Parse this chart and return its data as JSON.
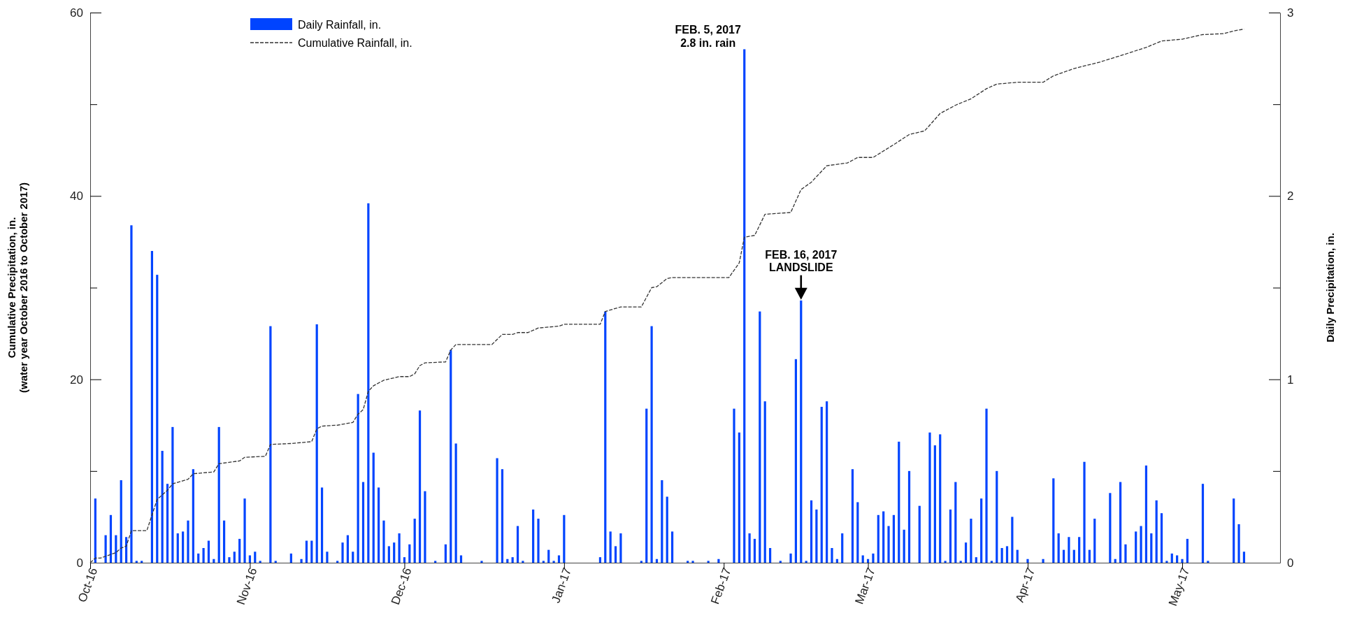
{
  "chart_data": {
    "type": "bar",
    "ylabel": "Cumulative Precipitation, in.\n(water year October 2016 to October 2017)",
    "y2label": "Daily Precipitation, in.",
    "legend": "top left",
    "line_style": "dashed",
    "xlim": [
      "2016-10-01",
      "2017-05-20"
    ],
    "xticks": [
      {
        "value": "2016-10-01",
        "label": "Oct-16"
      },
      {
        "value": "2016-11-01",
        "label": "Nov-16"
      },
      {
        "value": "2016-12-01",
        "label": "Dec-16"
      },
      {
        "value": "2017-01-01",
        "label": "Jan-17"
      },
      {
        "value": "2017-02-01",
        "label": "Feb-17"
      },
      {
        "value": "2017-03-01",
        "label": "Mar-17"
      },
      {
        "value": "2017-04-01",
        "label": "Apr-17"
      },
      {
        "value": "2017-05-01",
        "label": "May-17"
      }
    ],
    "ylim": [
      0,
      60
    ],
    "yticks": [
      0,
      {
        "value": 10,
        "label": null
      },
      20,
      {
        "value": 30,
        "label": null
      },
      40,
      {
        "value": 50,
        "label": null
      },
      60
    ],
    "y2lim": [
      0,
      3
    ],
    "y2ticks": [
      0,
      {
        "value": 0.5,
        "label": null
      },
      1,
      {
        "value": 1.5,
        "label": null
      },
      2,
      {
        "value": 2.5,
        "label": null
      },
      3
    ],
    "annotations": [
      {
        "text": "FEB. 5, 2017\n2.8 in. rain",
        "x": "2017-02-05",
        "y": 56
      },
      {
        "text": "FEB. 16, 2017\nLANDSLIDE",
        "x": "2017-02-16",
        "y": 28.6
      }
    ],
    "series": [
      {
        "name": "Daily Rainfall, in.",
        "axis": "y2",
        "color": "#0044ff",
        "x": [
          "2016-10-02",
          "2016-10-04",
          "2016-10-05",
          "2016-10-06",
          "2016-10-07",
          "2016-10-08",
          "2016-10-09",
          "2016-10-10",
          "2016-10-11",
          "2016-10-13",
          "2016-10-14",
          "2016-10-15",
          "2016-10-16",
          "2016-10-17",
          "2016-10-18",
          "2016-10-19",
          "2016-10-20",
          "2016-10-21",
          "2016-10-22",
          "2016-10-23",
          "2016-10-24",
          "2016-10-25",
          "2016-10-26",
          "2016-10-27",
          "2016-10-28",
          "2016-10-29",
          "2016-10-30",
          "2016-10-31",
          "2016-11-01",
          "2016-11-02",
          "2016-11-03",
          "2016-11-05",
          "2016-11-06",
          "2016-11-09",
          "2016-11-11",
          "2016-11-12",
          "2016-11-13",
          "2016-11-14",
          "2016-11-15",
          "2016-11-16",
          "2016-11-18",
          "2016-11-19",
          "2016-11-20",
          "2016-11-21",
          "2016-11-22",
          "2016-11-23",
          "2016-11-24",
          "2016-11-25",
          "2016-11-26",
          "2016-11-27",
          "2016-11-28",
          "2016-11-29",
          "2016-11-30",
          "2016-12-01",
          "2016-12-02",
          "2016-12-03",
          "2016-12-04",
          "2016-12-05",
          "2016-12-07",
          "2016-12-09",
          "2016-12-10",
          "2016-12-11",
          "2016-12-12",
          "2016-12-16",
          "2016-12-19",
          "2016-12-20",
          "2016-12-21",
          "2016-12-22",
          "2016-12-23",
          "2016-12-24",
          "2016-12-26",
          "2016-12-27",
          "2016-12-28",
          "2016-12-29",
          "2016-12-30",
          "2016-12-31",
          "2017-01-01",
          "2017-01-08",
          "2017-01-09",
          "2017-01-10",
          "2017-01-11",
          "2017-01-12",
          "2017-01-16",
          "2017-01-17",
          "2017-01-18",
          "2017-01-19",
          "2017-01-20",
          "2017-01-21",
          "2017-01-22",
          "2017-01-25",
          "2017-01-26",
          "2017-01-29",
          "2017-01-31",
          "2017-02-03",
          "2017-02-04",
          "2017-02-05",
          "2017-02-06",
          "2017-02-07",
          "2017-02-08",
          "2017-02-09",
          "2017-02-10",
          "2017-02-12",
          "2017-02-14",
          "2017-02-15",
          "2017-02-16",
          "2017-02-17",
          "2017-02-18",
          "2017-02-19",
          "2017-02-20",
          "2017-02-21",
          "2017-02-22",
          "2017-02-23",
          "2017-02-24",
          "2017-02-26",
          "2017-02-27",
          "2017-02-28",
          "2017-03-01",
          "2017-03-02",
          "2017-03-03",
          "2017-03-04",
          "2017-03-05",
          "2017-03-06",
          "2017-03-07",
          "2017-03-08",
          "2017-03-09",
          "2017-03-11",
          "2017-03-13",
          "2017-03-14",
          "2017-03-15",
          "2017-03-16",
          "2017-03-17",
          "2017-03-18",
          "2017-03-19",
          "2017-03-20",
          "2017-03-21",
          "2017-03-22",
          "2017-03-23",
          "2017-03-24",
          "2017-03-25",
          "2017-03-26",
          "2017-03-27",
          "2017-03-28",
          "2017-03-29",
          "2017-03-30",
          "2017-04-01",
          "2017-04-04",
          "2017-04-06",
          "2017-04-07",
          "2017-04-08",
          "2017-04-09",
          "2017-04-10",
          "2017-04-11",
          "2017-04-12",
          "2017-04-13",
          "2017-04-14",
          "2017-04-17",
          "2017-04-18",
          "2017-04-19",
          "2017-04-20",
          "2017-04-22",
          "2017-04-23",
          "2017-04-24",
          "2017-04-25",
          "2017-04-26",
          "2017-04-27",
          "2017-04-28",
          "2017-04-29",
          "2017-04-30",
          "2017-05-01",
          "2017-05-02",
          "2017-05-05",
          "2017-05-06",
          "2017-05-11",
          "2017-05-12",
          "2017-05-13"
        ],
        "values": [
          0.35,
          0.15,
          0.26,
          0.15,
          0.45,
          0.14,
          1.84,
          0.01,
          0.01,
          1.7,
          1.57,
          0.61,
          0.43,
          0.74,
          0.16,
          0.17,
          0.23,
          0.51,
          0.05,
          0.08,
          0.12,
          0.02,
          0.74,
          0.23,
          0.03,
          0.06,
          0.13,
          0.35,
          0.04,
          0.06,
          0.01,
          1.29,
          0.01,
          0.05,
          0.02,
          0.12,
          0.12,
          1.3,
          0.41,
          0.06,
          0.01,
          0.11,
          0.15,
          0.06,
          0.92,
          0.44,
          1.96,
          0.6,
          0.41,
          0.23,
          0.09,
          0.11,
          0.16,
          0.03,
          0.1,
          0.24,
          0.83,
          0.39,
          0.01,
          0.1,
          1.16,
          0.65,
          0.04,
          0.01,
          0.57,
          0.51,
          0.02,
          0.03,
          0.2,
          0.01,
          0.29,
          0.24,
          0.01,
          0.07,
          0.01,
          0.04,
          0.26,
          0.03,
          1.37,
          0.17,
          0.09,
          0.16,
          0.01,
          0.84,
          1.29,
          0.02,
          0.45,
          0.36,
          0.17,
          0.01,
          0.01,
          0.01,
          0.02,
          0.84,
          0.71,
          2.8,
          0.16,
          0.13,
          1.37,
          0.88,
          0.08,
          0.01,
          0.05,
          1.11,
          1.43,
          0.01,
          0.34,
          0.29,
          0.85,
          0.88,
          0.08,
          0.02,
          0.16,
          0.51,
          0.33,
          0.04,
          0.02,
          0.05,
          0.26,
          0.28,
          0.2,
          0.26,
          0.66,
          0.18,
          0.5,
          0.31,
          0.71,
          0.64,
          0.7,
          0.01,
          0.29,
          0.44,
          0.01,
          0.11,
          0.24,
          0.03,
          0.35,
          0.84,
          0.01,
          0.5,
          0.08,
          0.09,
          0.25,
          0.07,
          0.02,
          0.02,
          0.46,
          0.16,
          0.07,
          0.14,
          0.07,
          0.14,
          0.55,
          0.07,
          0.24,
          0.38,
          0.02,
          0.44,
          0.1,
          0.17,
          0.2,
          0.53,
          0.16,
          0.34,
          0.27,
          0.01,
          0.05,
          0.04,
          0.02,
          0.13,
          0.43,
          0.01,
          0.35,
          0.21,
          0.06
        ]
      },
      {
        "name": "Cumulative Rainfall, in.",
        "type": "line",
        "axis": "y",
        "color": "#333333",
        "x": [
          "2016-10-01",
          "2016-10-02",
          "2016-10-03",
          "2016-10-06",
          "2016-10-07",
          "2016-10-08",
          "2016-10-09",
          "2016-10-12",
          "2016-10-14",
          "2016-10-16",
          "2016-10-17",
          "2016-10-20",
          "2016-10-21",
          "2016-10-25",
          "2016-10-26",
          "2016-10-30",
          "2016-10-31",
          "2016-11-04",
          "2016-11-05",
          "2016-11-09",
          "2016-11-13",
          "2016-11-14",
          "2016-11-15",
          "2016-11-18",
          "2016-11-21",
          "2016-11-22",
          "2016-11-23",
          "2016-11-24",
          "2016-11-25",
          "2016-11-27",
          "2016-11-30",
          "2016-12-02",
          "2016-12-03",
          "2016-12-04",
          "2016-12-05",
          "2016-12-09",
          "2016-12-10",
          "2016-12-11",
          "2016-12-18",
          "2016-12-20",
          "2016-12-22",
          "2016-12-23",
          "2016-12-25",
          "2016-12-27",
          "2016-12-31",
          "2017-01-01",
          "2017-01-08",
          "2017-01-09",
          "2017-01-12",
          "2017-01-16",
          "2017-01-18",
          "2017-01-19",
          "2017-01-21",
          "2017-01-22",
          "2017-02-02",
          "2017-02-04",
          "2017-02-05",
          "2017-02-07",
          "2017-02-09",
          "2017-02-14",
          "2017-02-16",
          "2017-02-18",
          "2017-02-21",
          "2017-02-25",
          "2017-02-27",
          "2017-03-02",
          "2017-03-06",
          "2017-03-09",
          "2017-03-12",
          "2017-03-15",
          "2017-03-18",
          "2017-03-21",
          "2017-03-24",
          "2017-03-26",
          "2017-03-30",
          "2017-04-04",
          "2017-04-06",
          "2017-04-10",
          "2017-04-15",
          "2017-04-19",
          "2017-04-24",
          "2017-04-27",
          "2017-05-01",
          "2017-05-05",
          "2017-05-09",
          "2017-05-11",
          "2017-05-13"
        ],
        "values": [
          0,
          0.5,
          0.5,
          1.1,
          1.6,
          1.8,
          3.5,
          3.5,
          6.9,
          7.9,
          8.6,
          9.1,
          9.7,
          9.9,
          10.8,
          11.1,
          11.5,
          11.6,
          12.9,
          13.0,
          13.2,
          14.6,
          14.9,
          15.0,
          15.3,
          16.2,
          16.7,
          18.7,
          19.3,
          19.9,
          20.3,
          20.3,
          20.6,
          21.5,
          21.8,
          21.9,
          23.2,
          23.8,
          23.8,
          24.9,
          24.9,
          25.1,
          25.1,
          25.6,
          25.8,
          26.0,
          26.0,
          27.4,
          27.9,
          27.9,
          30.0,
          30.1,
          31.0,
          31.1,
          31.1,
          32.7,
          35.5,
          35.7,
          38.0,
          38.2,
          40.7,
          41.5,
          43.3,
          43.6,
          44.2,
          44.2,
          45.6,
          46.7,
          47.1,
          49.0,
          49.9,
          50.6,
          51.7,
          52.2,
          52.4,
          52.4,
          53.1,
          53.9,
          54.6,
          55.3,
          56.2,
          56.9,
          57.1,
          57.6,
          57.7,
          58.0,
          58.2
        ]
      }
    ]
  }
}
